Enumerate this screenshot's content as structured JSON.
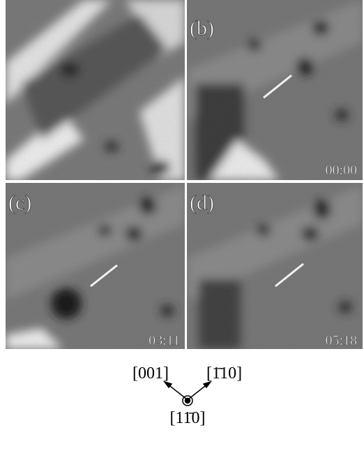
{
  "panels": [
    {
      "label": "(b)",
      "time": "00:00"
    },
    {
      "label": "(c)",
      "time": "03:11"
    },
    {
      "label": "(d)",
      "time": "05:18"
    }
  ],
  "directions": {
    "left": "[001]",
    "right": "[1̄10]",
    "center": "[11̄0]"
  }
}
